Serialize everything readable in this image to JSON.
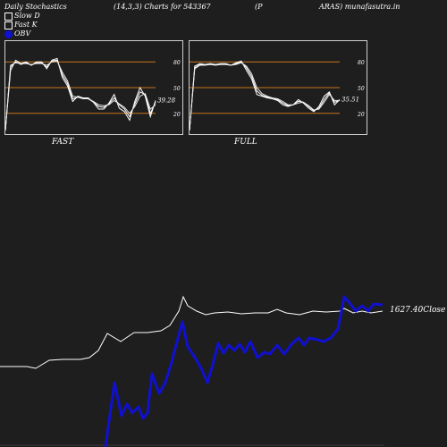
{
  "header": {
    "title": "Daily Stochastics",
    "params": "(14,3,3) Charts for 543367",
    "symbol_left": "(P",
    "symbol_right": "ARAS) munafasutra.in"
  },
  "legend": [
    {
      "label": "Slow  D",
      "color": "#ffffff"
    },
    {
      "label": "Fast K",
      "color": "#ffffff"
    },
    {
      "label": "OBV",
      "color": "#1010d0"
    }
  ],
  "colors": {
    "background": "#1e1e1e",
    "price_line": "#ffffff",
    "obv_line": "#1010d0",
    "level_line": "#c8741a"
  },
  "chart_data": [
    {
      "type": "line",
      "title": "FAST",
      "ylim": [
        0,
        100
      ],
      "levels": [
        20,
        50,
        80
      ],
      "level_labels": [
        "20",
        "50",
        "80"
      ],
      "last_value_label": "39.28",
      "series": [
        {
          "values": [
            0,
            70,
            82,
            78,
            80,
            76,
            80,
            80,
            72,
            82,
            84,
            62,
            52,
            34,
            40,
            38,
            38,
            33,
            25,
            25,
            32,
            42,
            26,
            22,
            12,
            34,
            50,
            40,
            16,
            35
          ]
        },
        {
          "values": [
            0,
            74,
            80,
            77,
            79,
            76,
            79,
            79,
            74,
            81,
            82,
            65,
            55,
            37,
            39,
            37,
            37,
            33,
            28,
            27,
            31,
            38,
            30,
            25,
            16,
            31,
            45,
            42,
            20,
            33
          ]
        },
        {
          "values": [
            0,
            76,
            79,
            78,
            78,
            77,
            78,
            78,
            76,
            80,
            81,
            68,
            58,
            40,
            39,
            37,
            37,
            34,
            30,
            29,
            30,
            35,
            31,
            27,
            20,
            28,
            40,
            43,
            25,
            30
          ]
        }
      ]
    },
    {
      "type": "line",
      "title": "FULL",
      "ylim": [
        0,
        100
      ],
      "levels": [
        20,
        50,
        80
      ],
      "level_labels": [
        "20",
        "50",
        "80"
      ],
      "last_value_label": "35.51",
      "series": [
        {
          "values": [
            0,
            75,
            78,
            77,
            78,
            77,
            78,
            78,
            76,
            79,
            81,
            70,
            60,
            42,
            40,
            38,
            37,
            35,
            30,
            28,
            30,
            36,
            32,
            26,
            22,
            28,
            40,
            45,
            30,
            36
          ]
        },
        {
          "values": [
            0,
            73,
            77,
            77,
            77,
            77,
            77,
            77,
            76,
            78,
            80,
            73,
            63,
            46,
            41,
            39,
            37,
            36,
            32,
            29,
            30,
            34,
            33,
            28,
            23,
            26,
            36,
            44,
            33,
            35
          ]
        },
        {
          "values": [
            0,
            72,
            76,
            76,
            77,
            76,
            77,
            77,
            76,
            77,
            79,
            75,
            66,
            50,
            43,
            40,
            38,
            37,
            34,
            30,
            30,
            32,
            33,
            29,
            24,
            25,
            33,
            42,
            35,
            35
          ]
        }
      ]
    },
    {
      "type": "line",
      "title": "",
      "last_value_label": "1627.40",
      "last_value_suffix": "Close",
      "series": [
        {
          "name": "Close",
          "values": [
            [
              0,
              110
            ],
            [
              30,
              110
            ],
            [
              40,
              112
            ],
            [
              55,
              103
            ],
            [
              70,
              102
            ],
            [
              90,
              102
            ],
            [
              100,
              100
            ],
            [
              110,
              92
            ],
            [
              120,
              73
            ],
            [
              135,
              82
            ],
            [
              150,
              72
            ],
            [
              165,
              72
            ],
            [
              180,
              70
            ],
            [
              190,
              64
            ],
            [
              200,
              48
            ],
            [
              205,
              32
            ],
            [
              210,
              42
            ],
            [
              220,
              48
            ],
            [
              230,
              52
            ],
            [
              240,
              50
            ],
            [
              255,
              49
            ],
            [
              270,
              51
            ],
            [
              285,
              50
            ],
            [
              300,
              50
            ],
            [
              310,
              46
            ],
            [
              320,
              50
            ],
            [
              335,
              52
            ],
            [
              350,
              48
            ],
            [
              365,
              49
            ],
            [
              380,
              48
            ],
            [
              385,
              45
            ],
            [
              395,
              50
            ],
            [
              405,
              48
            ],
            [
              415,
              50
            ],
            [
              428,
              48
            ]
          ]
        },
        {
          "name": "OBV",
          "values": [
            [
              118,
              200
            ],
            [
              128,
              128
            ],
            [
              136,
              165
            ],
            [
              142,
              152
            ],
            [
              148,
              162
            ],
            [
              155,
              155
            ],
            [
              160,
              168
            ],
            [
              165,
              162
            ],
            [
              170,
              118
            ],
            [
              178,
              140
            ],
            [
              185,
              128
            ],
            [
              192,
              105
            ],
            [
              198,
              82
            ],
            [
              204,
              60
            ],
            [
              210,
              88
            ],
            [
              218,
              100
            ],
            [
              225,
              112
            ],
            [
              232,
              128
            ],
            [
              238,
              108
            ],
            [
              244,
              84
            ],
            [
              250,
              95
            ],
            [
              256,
              86
            ],
            [
              262,
              92
            ],
            [
              268,
              85
            ],
            [
              274,
              94
            ],
            [
              280,
              82
            ],
            [
              288,
              100
            ],
            [
              296,
              94
            ],
            [
              302,
              96
            ],
            [
              310,
              86
            ],
            [
              318,
              96
            ],
            [
              326,
              85
            ],
            [
              334,
              78
            ],
            [
              340,
              86
            ],
            [
              346,
              78
            ],
            [
              355,
              80
            ],
            [
              362,
              82
            ],
            [
              370,
              78
            ],
            [
              378,
              68
            ],
            [
              385,
              32
            ],
            [
              392,
              40
            ],
            [
              398,
              48
            ],
            [
              405,
              42
            ],
            [
              412,
              48
            ],
            [
              418,
              40
            ],
            [
              428,
              41
            ]
          ]
        }
      ]
    }
  ]
}
